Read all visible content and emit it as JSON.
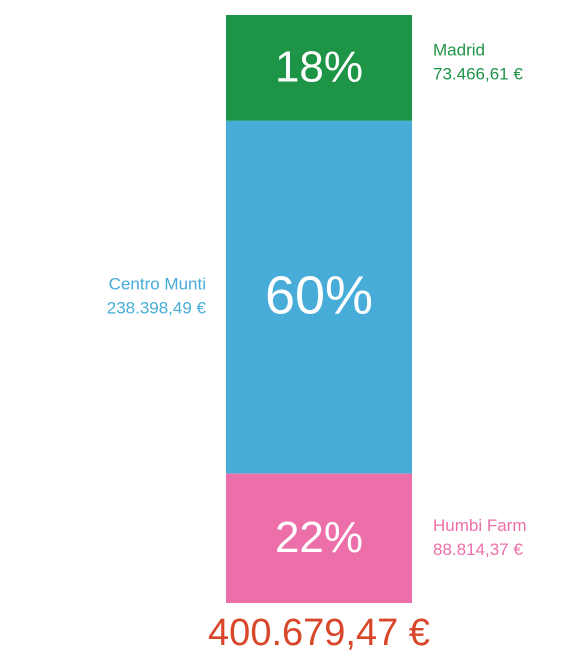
{
  "chart_data": {
    "type": "stacked-bar",
    "ylim": [
      0,
      100
    ],
    "series": [
      {
        "name": "Madrid",
        "color": "#1e9447",
        "values": [
          18
        ],
        "value_labels": [
          "18%"
        ],
        "amounts": [
          73466.61
        ],
        "amount_labels": [
          "73.466,61 €"
        ]
      },
      {
        "name": "Centro Munti",
        "color": "#47acd8",
        "values": [
          60
        ],
        "value_labels": [
          "60%"
        ],
        "amounts": [
          238398.49
        ],
        "amount_labels": [
          "238.398,49 €"
        ]
      },
      {
        "name": "Humbi Farm",
        "color": "#ec6fa9",
        "values": [
          22
        ],
        "value_labels": [
          "22%"
        ],
        "amounts": [
          88814.37
        ],
        "amount_labels": [
          "88.814,37 €"
        ]
      }
    ],
    "total": 400679.47,
    "total_label": "400.679,47 €",
    "total_color": "#d9472b"
  }
}
